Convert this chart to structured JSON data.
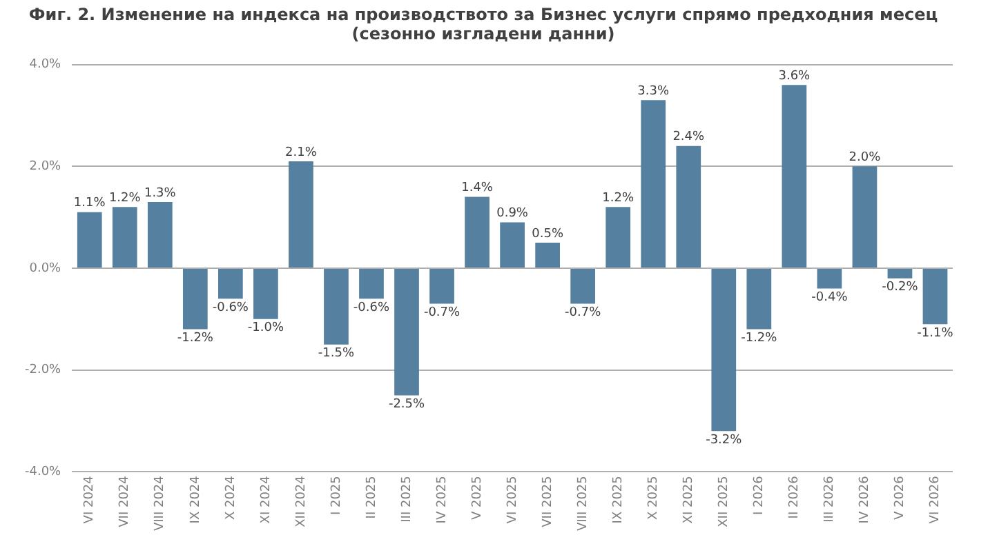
{
  "chart_data": {
    "type": "bar",
    "title": [
      "Фиг. 2. Изменение на индекса на производството за Бизнес услуги спрямо предходния месец",
      "(сезонно изгладени данни)"
    ],
    "categories": [
      "VI 2024",
      "VII 2024",
      "VIII 2024",
      "IX 2024",
      "X 2024",
      "XI 2024",
      "XII 2024",
      "I 2025",
      "II 2025",
      "III 2025",
      "IV 2025",
      "V 2025",
      "VI 2025",
      "VII 2025",
      "VIII 2025",
      "IX 2025",
      "X 2025",
      "XI 2025",
      "XII 2025",
      "I 2026",
      "II 2026",
      "III 2026",
      "IV 2026",
      "V 2026",
      "VI 2026"
    ],
    "values": [
      1.1,
      1.2,
      1.3,
      -1.2,
      -0.6,
      -1.0,
      2.1,
      -1.5,
      -0.6,
      -2.5,
      -0.7,
      1.4,
      0.9,
      0.5,
      -0.7,
      1.2,
      3.3,
      2.4,
      -3.2,
      -1.2,
      3.6,
      -0.4,
      2.0,
      -0.2,
      -1.1
    ],
    "value_labels": [
      "1.1%",
      "1.2%",
      "1.3%",
      "-1.2%",
      "-0.6%",
      "-1.0%",
      "2.1%",
      "-1.5%",
      "-0.6%",
      "-2.5%",
      "-0.7%",
      "1.4%",
      "0.9%",
      "0.5%",
      "-0.7%",
      "1.2%",
      "3.3%",
      "2.4%",
      "-3.2%",
      "-1.2%",
      "3.6%",
      "-0.4%",
      "2.0%",
      "-0.2%",
      "-1.1%"
    ],
    "color": "#56809f",
    "ylim": [
      -4,
      4
    ],
    "yticks": [
      {
        "value": -4,
        "label": "-4.0%"
      },
      {
        "value": -2,
        "label": "-2.0%"
      },
      {
        "value": 0,
        "label": "0.0%"
      },
      {
        "value": 2,
        "label": "2.0%"
      },
      {
        "value": 4,
        "label": "4.0%"
      }
    ],
    "grid": "y",
    "legend": false
  }
}
